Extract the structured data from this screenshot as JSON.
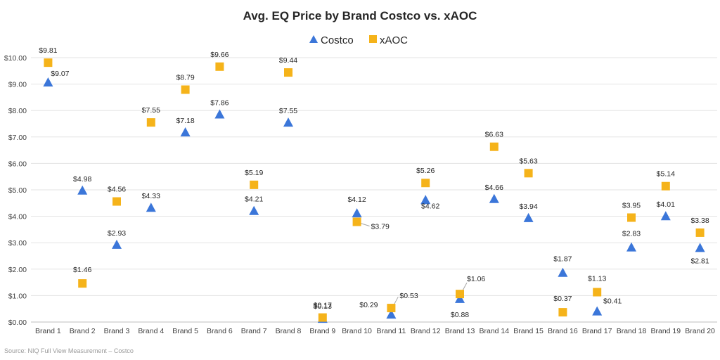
{
  "chart_data": {
    "type": "scatter",
    "title": "Avg. EQ Price by Brand Costco vs. xAOC",
    "categories": [
      "Brand 1",
      "Brand 2",
      "Brand 3",
      "Brand 4",
      "Brand 5",
      "Brand 6",
      "Brand 7",
      "Brand 8",
      "Brand 9",
      "Brand 10",
      "Brand 11",
      "Brand 12",
      "Brand 13",
      "Brand 14",
      "Brand 15",
      "Brand 16",
      "Brand 17",
      "Brand 18",
      "Brand 19",
      "Brand 20"
    ],
    "series": [
      {
        "name": "Costco",
        "marker": "triangle",
        "color": "#3b76d9",
        "values": [
          9.07,
          4.98,
          2.93,
          4.33,
          7.18,
          7.86,
          4.21,
          7.55,
          0.13,
          4.12,
          0.29,
          4.62,
          0.88,
          4.66,
          3.94,
          1.87,
          0.41,
          2.83,
          4.01,
          2.81
        ],
        "labels": [
          "$9.07",
          "$4.98",
          "$2.93",
          "$4.33",
          "$7.18",
          "$7.86",
          "$4.21",
          "$7.55",
          "$0.13",
          "$4.12",
          "$0.29",
          "$4.62",
          "$0.88",
          "$4.66",
          "$3.94",
          "$1.87",
          "$0.41",
          "$2.83",
          "$4.01",
          "$2.81"
        ]
      },
      {
        "name": "xAOC",
        "marker": "square",
        "color": "#f5b31a",
        "values": [
          9.81,
          1.46,
          4.56,
          7.55,
          8.79,
          9.66,
          5.19,
          9.44,
          0.17,
          3.79,
          0.53,
          5.26,
          1.06,
          6.63,
          5.63,
          0.37,
          1.13,
          3.95,
          5.14,
          3.38
        ],
        "labels": [
          "$9.81",
          "$1.46",
          "$4.56",
          "$7.55",
          "$8.79",
          "$9.66",
          "$5.19",
          "$9.44",
          "$0.17",
          "$3.79",
          "$0.53",
          "$5.26",
          "$1.06",
          "$6.63",
          "$5.63",
          "$0.37",
          "$1.13",
          "$3.95",
          "$5.14",
          "$3.38"
        ]
      }
    ],
    "y_ticks": [
      "$0.00",
      "$1.00",
      "$2.00",
      "$3.00",
      "$4.00",
      "$5.00",
      "$6.00",
      "$7.00",
      "$8.00",
      "$9.00",
      "$10.00"
    ],
    "ylim": [
      0,
      10
    ],
    "xlabel": "",
    "ylabel": "",
    "grid": true,
    "legend_position": "top-center"
  },
  "source_note": "Source: NIQ Full View Measurement – Costco"
}
